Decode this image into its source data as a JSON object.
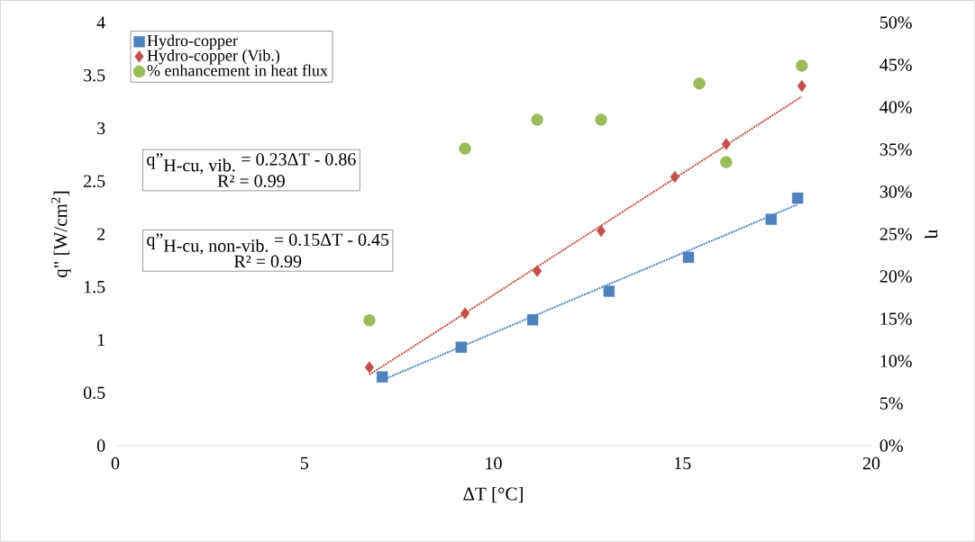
{
  "chart_data": {
    "type": "scatter",
    "xlabel": "ΔT [°C]",
    "ylabel": "q\" [W/cm$^{2}$]",
    "y2label": "η",
    "series": [
      {
        "name": "Hydro-copper",
        "color": "#4f81bd",
        "marker": "square",
        "x": [
          7.06,
          9.15,
          11.04,
          13.06,
          15.16,
          17.35,
          18.05
        ],
        "values": [
          0.65,
          0.93,
          1.19,
          1.46,
          1.78,
          2.14,
          2.34
        ]
      },
      {
        "name": "Hydro-copper (Vib.)",
        "color": "#c0504d",
        "marker": "diamond",
        "x": [
          6.72,
          9.25,
          11.16,
          12.85,
          14.8,
          16.16,
          18.16
        ],
        "values": [
          0.74,
          1.25,
          1.65,
          2.03,
          2.54,
          2.85,
          3.4
        ]
      },
      {
        "name": "% enhancement in heat flux",
        "axis": "y2",
        "color": "#9bbb59",
        "marker": "circle",
        "x": [
          6.72,
          9.25,
          11.16,
          12.85,
          15.45,
          16.16,
          18.16
        ],
        "values": [
          14.8,
          35.1,
          38.5,
          38.5,
          42.8,
          33.5,
          44.9
        ]
      },
      {
        "type": "line",
        "color": "#4f81bd",
        "marker": "none",
        "line_style": "dotted",
        "x": [
          7.06,
          18.05
        ],
        "values": [
          0.62,
          2.28
        ]
      },
      {
        "type": "line",
        "color": "#c0504d",
        "marker": "none",
        "line_style": "dotted",
        "x": [
          6.72,
          18.16
        ],
        "values": [
          0.67,
          3.3
        ]
      }
    ],
    "xlim": [
      0,
      20
    ],
    "xticks": [
      0,
      5,
      10,
      15,
      20
    ],
    "ylim": [
      0,
      4
    ],
    "yticks": [
      0,
      0.5,
      1,
      1.5,
      2,
      2.5,
      3,
      3.5,
      4
    ],
    "y2lim": [
      0,
      50
    ],
    "y2ticks": [
      {
        "value": 0,
        "label": "0%"
      },
      {
        "value": 5,
        "label": "5%"
      },
      {
        "value": 10,
        "label": "10%"
      },
      {
        "value": 15,
        "label": "15%"
      },
      {
        "value": 20,
        "label": "20%"
      },
      {
        "value": 25,
        "label": "25%"
      },
      {
        "value": 30,
        "label": "30%"
      },
      {
        "value": 35,
        "label": "35%"
      },
      {
        "value": 40,
        "label": "40%"
      },
      {
        "value": 45,
        "label": "45%"
      },
      {
        "value": 50,
        "label": "50%"
      }
    ],
    "legend": "top left",
    "annotations": [
      "\\textrm{q\"}_{\\textrm{H-cu, vib.}}\\textrm{ = 0.23ΔT  - 0.86}",
      "R² = 0.99",
      "\\textrm{q\"}_{\\textrm{H-cu, non-vib.}}\\textrm{ = 0.15ΔT - 0.45}",
      "R² = 0.99"
    ]
  }
}
